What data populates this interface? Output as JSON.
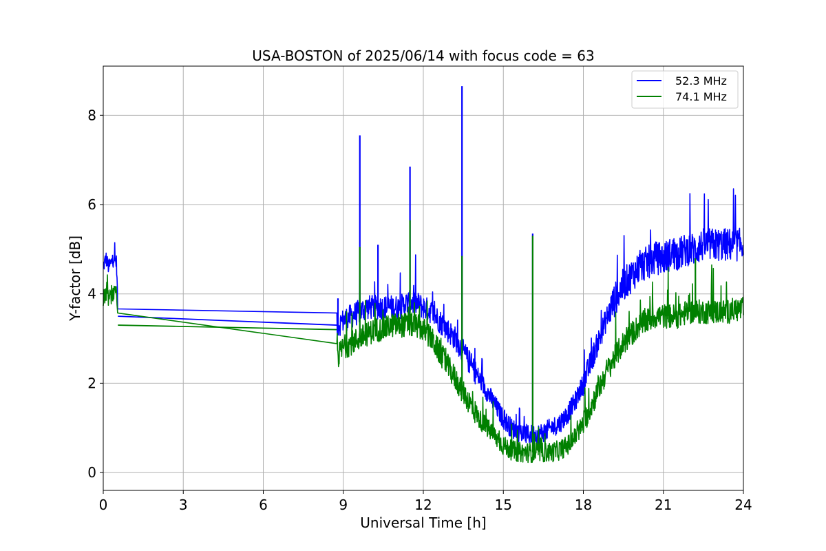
{
  "chart_data": {
    "type": "line",
    "title": "USA-BOSTON of 2025/06/14 with focus code = 63",
    "xlabel": "Universal Time [h]",
    "ylabel": "Y-factor [dB]",
    "xlim": [
      0,
      24
    ],
    "ylim": [
      -0.4,
      9.1
    ],
    "xticks": [
      0,
      3,
      6,
      9,
      12,
      15,
      18,
      21,
      24
    ],
    "yticks": [
      0,
      2,
      4,
      6,
      8
    ],
    "grid": true,
    "legend_position": "top-right",
    "series": [
      {
        "name": "52.3 MHz",
        "color": "#0000ff",
        "x": [
          0,
          0.1,
          0.2,
          0.3,
          0.4,
          0.5,
          0.55,
          8.75,
          8.8,
          9.0,
          9.3,
          9.6,
          9.9,
          10.2,
          10.5,
          10.8,
          11.1,
          11.4,
          11.7,
          12.0,
          12.3,
          12.6,
          12.9,
          13.2,
          13.5,
          13.8,
          14.1,
          14.4,
          14.7,
          15.0,
          15.3,
          15.6,
          15.9,
          16.2,
          16.5,
          16.8,
          17.1,
          17.4,
          17.7,
          18.0,
          18.3,
          18.6,
          18.9,
          19.2,
          19.5,
          19.8,
          20.1,
          20.4,
          20.7,
          21.0,
          21.3,
          21.6,
          21.9,
          22.2,
          22.5,
          22.8,
          23.1,
          23.4,
          23.7,
          24.0
        ],
        "y": [
          4.6,
          4.8,
          4.6,
          4.7,
          4.8,
          4.7,
          3.5,
          3.3,
          3.3,
          3.4,
          3.5,
          3.6,
          3.7,
          3.7,
          3.7,
          3.7,
          3.7,
          3.8,
          3.8,
          3.7,
          3.6,
          3.4,
          3.2,
          3.0,
          2.7,
          2.4,
          2.1,
          1.8,
          1.5,
          1.2,
          1.0,
          0.9,
          0.85,
          0.85,
          0.9,
          1.0,
          1.1,
          1.3,
          1.6,
          2.0,
          2.5,
          3.0,
          3.5,
          3.9,
          4.2,
          4.4,
          4.6,
          4.7,
          4.8,
          4.8,
          4.9,
          4.9,
          5.0,
          5.0,
          5.1,
          5.1,
          5.1,
          5.1,
          5.1,
          5.1
        ],
        "spikes": [
          [
            8.8,
            3.9
          ],
          [
            9.62,
            7.55
          ],
          [
            10.3,
            5.1
          ],
          [
            11.5,
            6.85
          ],
          [
            13.45,
            8.65
          ],
          [
            16.1,
            5.35
          ]
        ]
      },
      {
        "name": "74.1 MHz",
        "color": "#008000",
        "x": [
          0,
          0.1,
          0.2,
          0.3,
          0.4,
          0.5,
          0.55,
          8.75,
          8.8,
          9.0,
          9.3,
          9.6,
          9.9,
          10.2,
          10.5,
          10.8,
          11.1,
          11.4,
          11.7,
          12.0,
          12.3,
          12.6,
          12.9,
          13.2,
          13.5,
          13.8,
          14.1,
          14.4,
          14.7,
          15.0,
          15.3,
          15.6,
          15.9,
          16.2,
          16.5,
          16.8,
          17.1,
          17.4,
          17.7,
          18.0,
          18.3,
          18.6,
          18.9,
          19.2,
          19.5,
          19.8,
          20.1,
          20.4,
          20.7,
          21.0,
          21.3,
          21.6,
          21.9,
          22.2,
          22.5,
          22.8,
          23.1,
          23.4,
          23.7,
          24.0
        ],
        "y": [
          3.9,
          4.0,
          3.9,
          3.95,
          4.0,
          4.0,
          3.3,
          3.2,
          2.6,
          2.8,
          2.9,
          3.0,
          3.1,
          3.2,
          3.2,
          3.3,
          3.3,
          3.3,
          3.3,
          3.2,
          3.0,
          2.7,
          2.4,
          2.1,
          1.8,
          1.5,
          1.2,
          1.0,
          0.8,
          0.6,
          0.5,
          0.45,
          0.45,
          0.45,
          0.45,
          0.45,
          0.5,
          0.6,
          0.8,
          1.1,
          1.5,
          1.9,
          2.3,
          2.6,
          2.9,
          3.1,
          3.3,
          3.4,
          3.5,
          3.5,
          3.5,
          3.5,
          3.6,
          3.6,
          3.6,
          3.6,
          3.6,
          3.6,
          3.65,
          3.65
        ],
        "spikes": [
          [
            9.62,
            5.05
          ],
          [
            11.5,
            5.65
          ],
          [
            13.45,
            4.85
          ],
          [
            16.1,
            5.3
          ],
          [
            22.2,
            4.8
          ]
        ]
      }
    ]
  }
}
